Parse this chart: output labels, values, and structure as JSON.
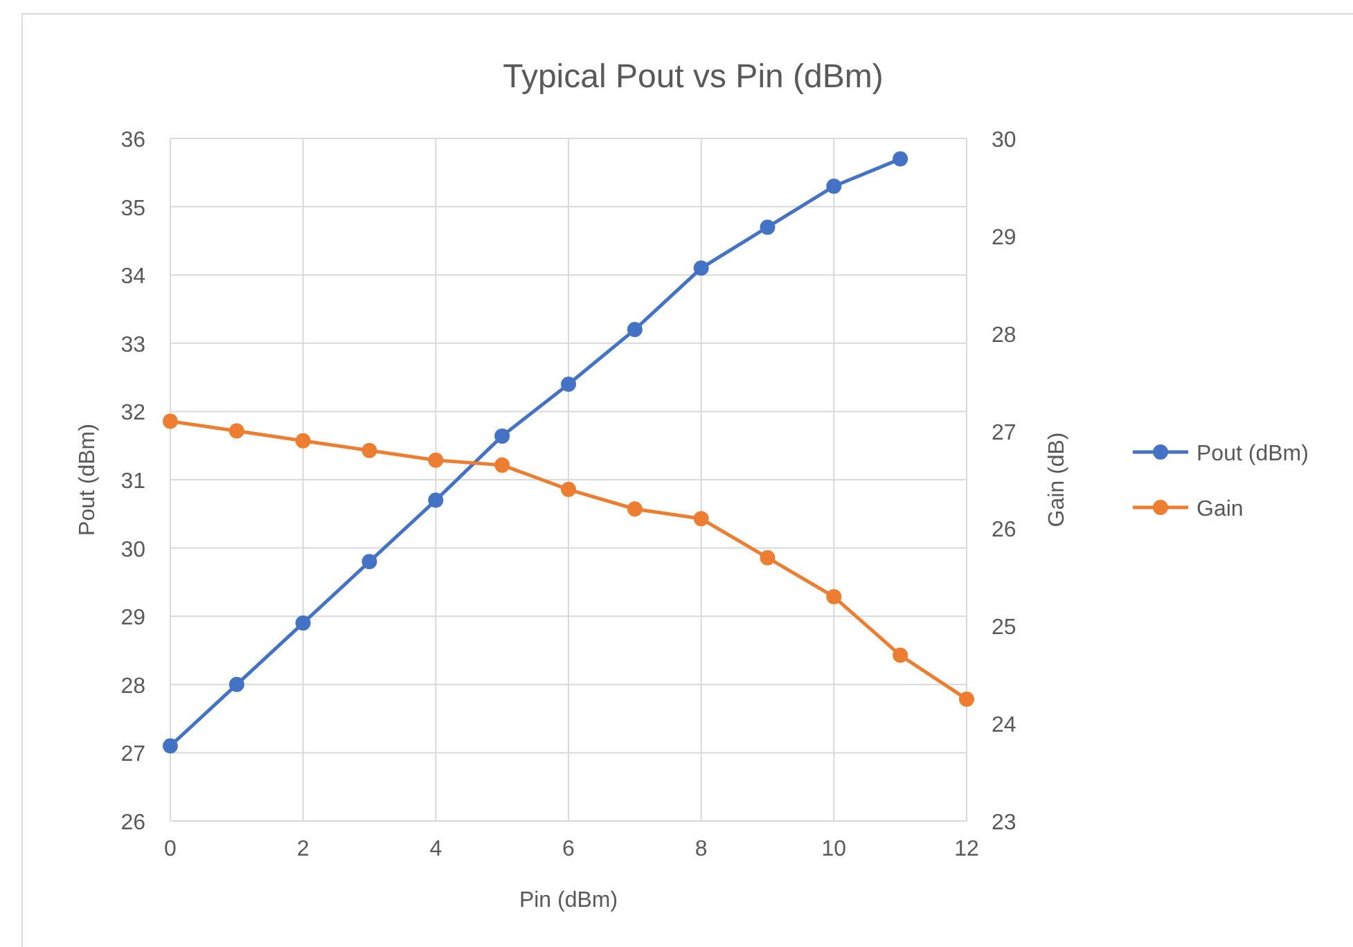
{
  "chart_data": {
    "type": "line",
    "title": "Typical Pout vs Pin (dBm)",
    "xlabel": "Pin (dBm)",
    "ylabel": "Pout (dBm)",
    "y2label": "Gain (dB)",
    "x": [
      0,
      1,
      2,
      3,
      4,
      5,
      6,
      7,
      8,
      9,
      10,
      11,
      12
    ],
    "series": [
      {
        "name": "Pout (dBm)",
        "color": "#4472c4",
        "values": [
          27.1,
          28.0,
          28.9,
          29.8,
          30.7,
          31.64,
          32.4,
          33.2,
          34.1,
          34.7,
          35.3,
          35.7,
          null
        ]
      },
      {
        "name": "Gain",
        "color": "#ed7d31",
        "axis": "y2",
        "values": [
          27.1,
          27.0,
          26.9,
          26.8,
          26.7,
          26.65,
          26.4,
          26.2,
          26.1,
          25.7,
          25.3,
          24.7,
          24.25
        ]
      }
    ],
    "xlim": [
      0,
      12
    ],
    "xticks": [
      0,
      2,
      4,
      6,
      8,
      10,
      12
    ],
    "ylim": [
      26,
      36
    ],
    "yticks": [
      26,
      27,
      28,
      29,
      30,
      31,
      32,
      33,
      34,
      35,
      36
    ],
    "y2lim": [
      23,
      30
    ],
    "y2ticks": [
      23,
      24,
      25,
      26,
      27,
      28,
      29,
      30
    ],
    "grid": true,
    "legend": "right",
    "marker": "circle",
    "line_style": "solid"
  }
}
